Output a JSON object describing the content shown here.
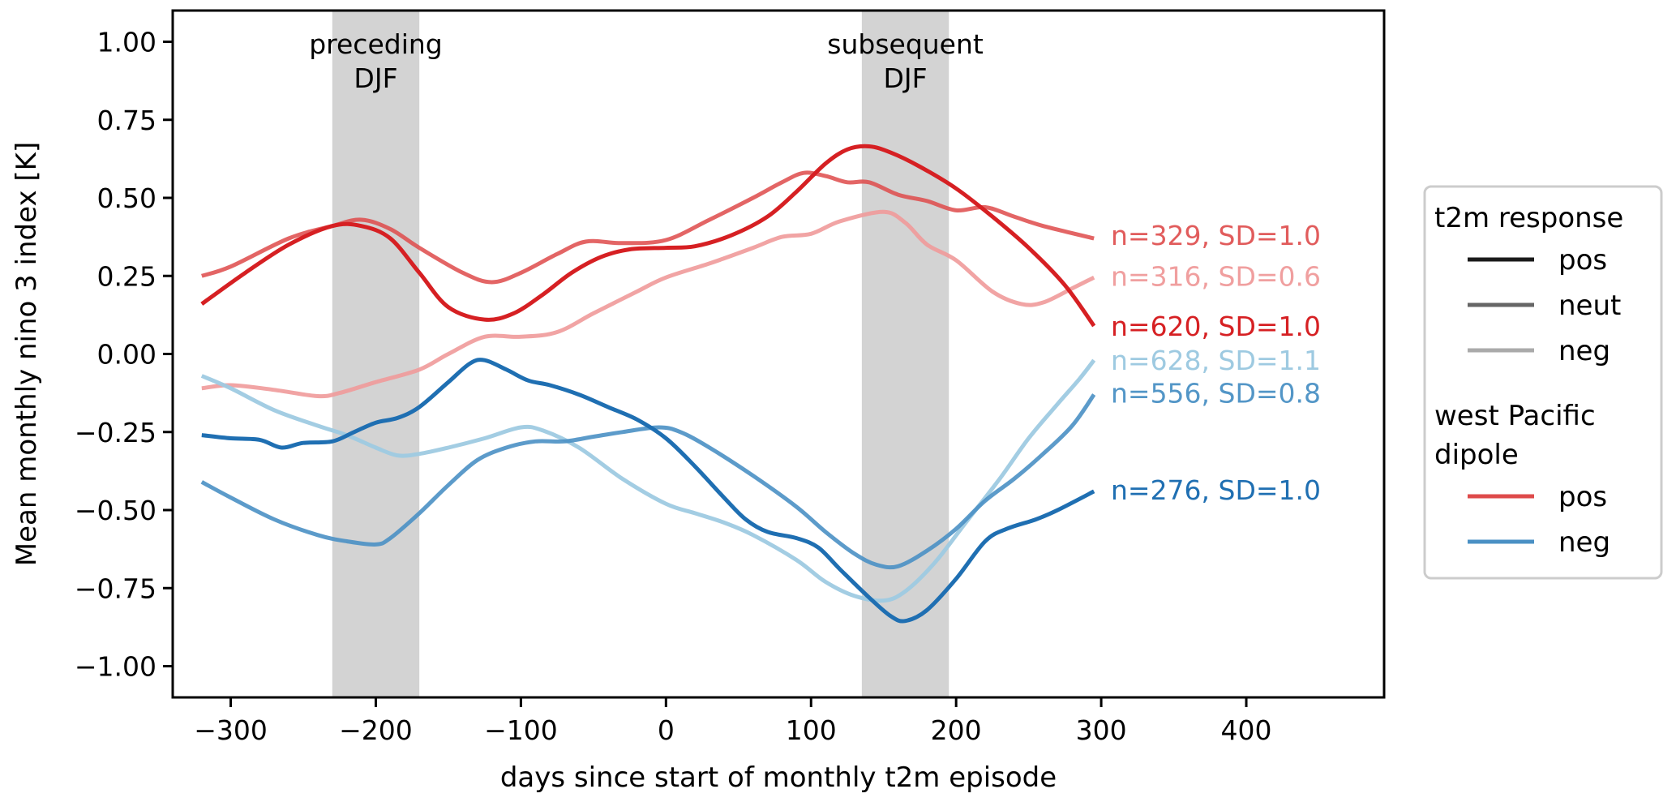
{
  "chart_data": {
    "type": "line",
    "title": "",
    "xlabel": "days since start of monthly t2m episode",
    "ylabel": "Mean monthly nino 3 index [K]",
    "xlim": [
      -340,
      495
    ],
    "ylim": [
      -1.1,
      1.1
    ],
    "xticks": [
      -300,
      -200,
      -100,
      0,
      100,
      200,
      300,
      400
    ],
    "xtick_labels": [
      "−300",
      "−200",
      "−100",
      "0",
      "100",
      "200",
      "300",
      "400"
    ],
    "yticks": [
      1.0,
      0.75,
      0.5,
      0.25,
      0.0,
      -0.25,
      -0.5,
      -0.75,
      -1.0
    ],
    "ytick_labels": [
      "1.00",
      "0.75",
      "0.50",
      "0.25",
      "0.00",
      "−0.25",
      "−0.50",
      "−0.75",
      "−1.00"
    ],
    "grid": false,
    "shaded_bands": [
      {
        "x0": -230,
        "x1": -170,
        "label_line1": "preceding",
        "label_line2": "DJF",
        "color": "#d3d3d3"
      },
      {
        "x0": 135,
        "x1": 195,
        "label_line1": "subsequent",
        "label_line2": "DJF",
        "color": "#d3d3d3"
      }
    ],
    "series": [
      {
        "name": "wPd pos / t2m neut",
        "dipole": "pos",
        "t2m_response": "neut",
        "color": "#de4a4a",
        "opacity": 0.85,
        "label": "n=329, SD=1.0",
        "label_y": 0.38,
        "x": [
          -320,
          -300,
          -260,
          -230,
          -210,
          -190,
          -170,
          -140,
          -120,
          -100,
          -75,
          -55,
          -30,
          0,
          30,
          60,
          80,
          95,
          110,
          125,
          140,
          160,
          180,
          200,
          220,
          240,
          260,
          295
        ],
        "y": [
          0.25,
          0.28,
          0.37,
          0.41,
          0.43,
          0.4,
          0.34,
          0.26,
          0.23,
          0.26,
          0.32,
          0.36,
          0.355,
          0.365,
          0.43,
          0.5,
          0.55,
          0.58,
          0.57,
          0.55,
          0.55,
          0.51,
          0.49,
          0.46,
          0.47,
          0.44,
          0.41,
          0.37
        ]
      },
      {
        "name": "wPd pos / t2m neg",
        "dipole": "pos",
        "t2m_response": "neg",
        "color": "#ef9a9a",
        "opacity": 0.9,
        "label": "n=316, SD=0.6",
        "label_y": 0.25,
        "x": [
          -320,
          -300,
          -270,
          -240,
          -225,
          -200,
          -170,
          -150,
          -125,
          -100,
          -75,
          -50,
          -20,
          0,
          30,
          60,
          80,
          100,
          120,
          150,
          165,
          180,
          200,
          225,
          245,
          260,
          280,
          295
        ],
        "y": [
          -0.11,
          -0.1,
          -0.115,
          -0.135,
          -0.125,
          -0.09,
          -0.05,
          0.0,
          0.055,
          0.055,
          0.07,
          0.13,
          0.2,
          0.245,
          0.29,
          0.34,
          0.375,
          0.385,
          0.425,
          0.455,
          0.42,
          0.35,
          0.3,
          0.2,
          0.16,
          0.165,
          0.21,
          0.245
        ]
      },
      {
        "name": "wPd pos / t2m pos",
        "dipole": "pos",
        "t2m_response": "pos",
        "color": "#d62023",
        "opacity": 1.0,
        "label": "n=620, SD=1.0",
        "label_y": 0.09,
        "x": [
          -320,
          -290,
          -260,
          -230,
          -210,
          -190,
          -170,
          -150,
          -125,
          -105,
          -85,
          -65,
          -45,
          -25,
          0,
          20,
          45,
          70,
          90,
          110,
          125,
          140,
          155,
          175,
          200,
          225,
          250,
          275,
          295
        ],
        "y": [
          0.16,
          0.26,
          0.35,
          0.41,
          0.41,
          0.37,
          0.26,
          0.15,
          0.11,
          0.13,
          0.19,
          0.26,
          0.31,
          0.335,
          0.34,
          0.345,
          0.38,
          0.44,
          0.52,
          0.61,
          0.655,
          0.665,
          0.645,
          0.6,
          0.53,
          0.44,
          0.34,
          0.22,
          0.09
        ]
      },
      {
        "name": "wPd neg / t2m neg",
        "dipole": "neg",
        "t2m_response": "neg",
        "color": "#9ecae1",
        "opacity": 0.95,
        "label": "n=628, SD=1.1",
        "label_y": -0.02,
        "x": [
          -320,
          -300,
          -270,
          -240,
          -220,
          -200,
          -185,
          -170,
          -150,
          -125,
          -100,
          -85,
          -60,
          -30,
          0,
          20,
          40,
          60,
          90,
          110,
          130,
          150,
          165,
          185,
          205,
          230,
          250,
          270,
          285,
          295
        ],
        "y": [
          -0.07,
          -0.11,
          -0.18,
          -0.23,
          -0.26,
          -0.3,
          -0.325,
          -0.32,
          -0.3,
          -0.27,
          -0.235,
          -0.245,
          -0.3,
          -0.4,
          -0.48,
          -0.51,
          -0.54,
          -0.58,
          -0.66,
          -0.73,
          -0.775,
          -0.79,
          -0.76,
          -0.67,
          -0.55,
          -0.4,
          -0.27,
          -0.16,
          -0.08,
          -0.02
        ]
      },
      {
        "name": "wPd neg / t2m neut",
        "dipole": "neg",
        "t2m_response": "neut",
        "color": "#4a90c4",
        "opacity": 0.9,
        "label": "n=556, SD=0.8",
        "label_y": -0.125,
        "x": [
          -320,
          -300,
          -270,
          -240,
          -220,
          -200,
          -190,
          -170,
          -150,
          -130,
          -110,
          -90,
          -70,
          -50,
          -30,
          -5,
          10,
          30,
          60,
          90,
          110,
          130,
          145,
          160,
          180,
          200,
          220,
          240,
          260,
          280,
          295
        ],
        "y": [
          -0.41,
          -0.46,
          -0.53,
          -0.58,
          -0.6,
          -0.61,
          -0.59,
          -0.51,
          -0.42,
          -0.34,
          -0.3,
          -0.28,
          -0.28,
          -0.265,
          -0.25,
          -0.235,
          -0.25,
          -0.3,
          -0.39,
          -0.49,
          -0.57,
          -0.64,
          -0.675,
          -0.68,
          -0.63,
          -0.56,
          -0.47,
          -0.4,
          -0.32,
          -0.23,
          -0.13
        ]
      },
      {
        "name": "wPd neg / t2m pos",
        "dipole": "neg",
        "t2m_response": "pos",
        "color": "#1f6fb2",
        "opacity": 1.0,
        "label": "n=276, SD=1.0",
        "label_y": -0.435,
        "x": [
          -320,
          -300,
          -280,
          -265,
          -250,
          -230,
          -215,
          -200,
          -185,
          -170,
          -150,
          -135,
          -125,
          -110,
          -95,
          -80,
          -60,
          -40,
          -20,
          0,
          20,
          40,
          55,
          70,
          90,
          105,
          120,
          140,
          155,
          165,
          180,
          200,
          220,
          235,
          255,
          270,
          295
        ],
        "y": [
          -0.26,
          -0.27,
          -0.275,
          -0.3,
          -0.285,
          -0.28,
          -0.25,
          -0.22,
          -0.205,
          -0.17,
          -0.09,
          -0.03,
          -0.02,
          -0.05,
          -0.085,
          -0.1,
          -0.13,
          -0.17,
          -0.21,
          -0.27,
          -0.36,
          -0.46,
          -0.53,
          -0.57,
          -0.59,
          -0.62,
          -0.69,
          -0.78,
          -0.84,
          -0.855,
          -0.82,
          -0.72,
          -0.6,
          -0.56,
          -0.53,
          -0.5,
          -0.44
        ]
      }
    ],
    "legend": {
      "placement": "right-outside",
      "sections": [
        {
          "title_lines": [
            "t2m response"
          ],
          "entries": [
            {
              "label": "pos",
              "color": "#1a1a1a"
            },
            {
              "label": "neut",
              "color": "#666666"
            },
            {
              "label": "neg",
              "color": "#aaaaaa"
            }
          ]
        },
        {
          "title_lines": [
            "west Pacific",
            "dipole"
          ],
          "entries": [
            {
              "label": "pos",
              "color": "#de4a4a"
            },
            {
              "label": "neg",
              "color": "#4a90c4"
            }
          ]
        }
      ]
    }
  }
}
